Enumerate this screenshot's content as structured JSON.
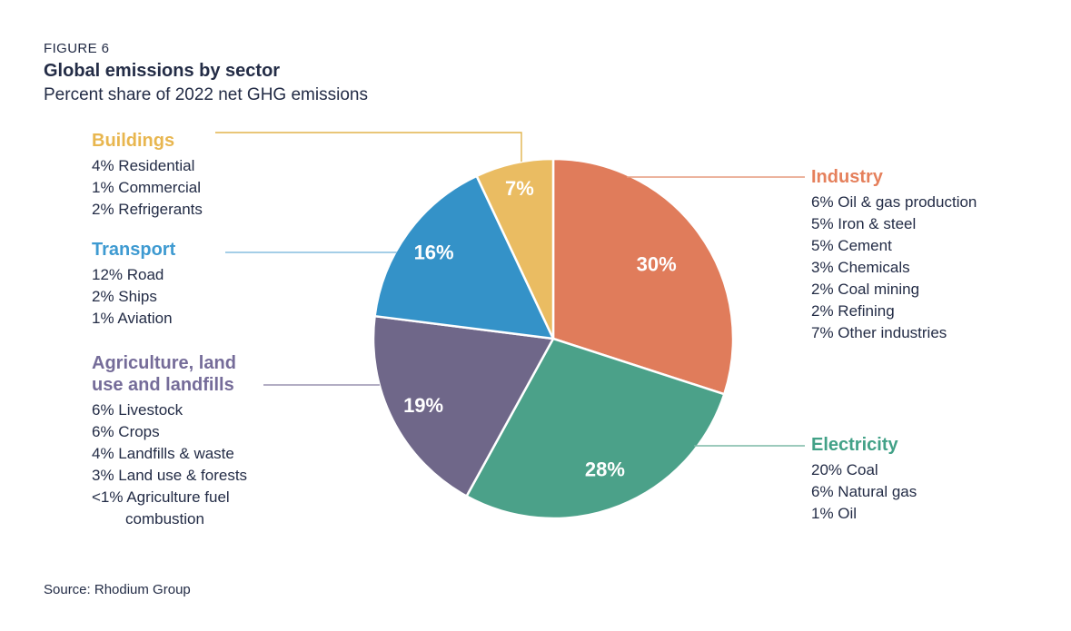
{
  "header": {
    "figure_label": "FIGURE 6",
    "title": "Global emissions by sector",
    "subtitle": "Percent share of 2022 net GHG emissions"
  },
  "source": "Source: Rhodium Group",
  "text_color": "#232C46",
  "chart_data": {
    "type": "pie",
    "title": "Global emissions by sector",
    "subtitle": "Percent share of 2022 net GHG emissions",
    "units": "percent share of 2022 net GHG emissions",
    "start_angle_deg": 0,
    "direction": "clockwise",
    "total": 100,
    "slices": [
      {
        "label": "Industry",
        "value": 30,
        "display_value": "30%",
        "color": "#E07C5B",
        "heading_color": "#E5805C",
        "line_color": "#E59B7E",
        "breakdown": [
          "6% Oil & gas production",
          "5% Iron & steel",
          "5% Cement",
          "3% Chemicals",
          "2% Coal mining",
          "2% Refining",
          "7% Other industries"
        ]
      },
      {
        "label": "Electricity",
        "value": 28,
        "display_value": "28%",
        "color": "#4BA189",
        "heading_color": "#42A187",
        "line_color": "#7BB8A6",
        "breakdown": [
          "20% Coal",
          "6% Natural gas",
          "1% Oil"
        ]
      },
      {
        "label": "Agriculture, land use and landfills",
        "value": 19,
        "display_value": "19%",
        "color": "#6F6789",
        "heading_color": "#756C99",
        "line_color": "#9A93B0",
        "breakdown": [
          "6% Livestock",
          "6% Crops",
          "4% Landfills & waste",
          "3% Land use & forests",
          "<1% Agriculture fuel combustion"
        ]
      },
      {
        "label": "Transport",
        "value": 16,
        "display_value": "16%",
        "color": "#3492C8",
        "heading_color": "#3E9AD1",
        "line_color": "#85BEDF",
        "breakdown": [
          "12% Road",
          "2% Ships",
          "1% Aviation"
        ]
      },
      {
        "label": "Buildings",
        "value": 7,
        "display_value": "7%",
        "color": "#EABC62",
        "heading_color": "#E8B64F",
        "line_color": "#E2B44C",
        "breakdown": [
          "4% Residential",
          "1% Commercial",
          "2% Refrigerants"
        ]
      }
    ]
  }
}
